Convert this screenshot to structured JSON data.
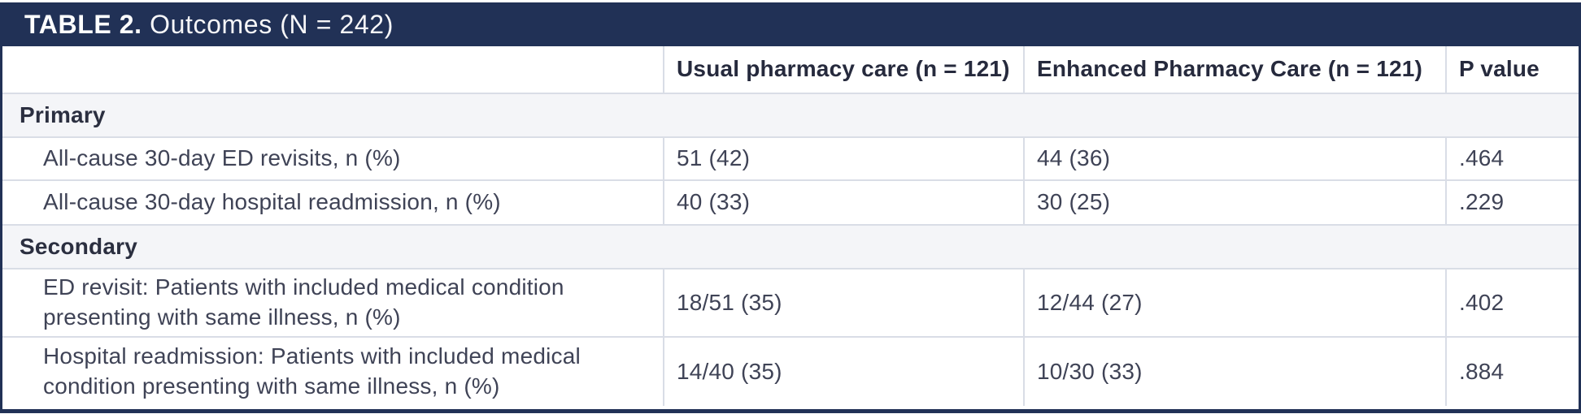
{
  "table": {
    "title_prefix": "TABLE 2.",
    "title_rest": " Outcomes (N = 242)",
    "columns": {
      "label": "",
      "usual": "Usual pharmacy care (n = 121)",
      "enhanced": "Enhanced Pharmacy Care (n = 121)",
      "p": "P value"
    },
    "sections": [
      {
        "label": "Primary",
        "rows": [
          {
            "label": "All-cause 30-day ED revisits, n (%)",
            "usual": "51 (42)",
            "enhanced": "44 (36)",
            "p": ".464"
          },
          {
            "label": "All-cause 30-day hospital readmission, n (%)",
            "usual": "40 (33)",
            "enhanced": "30 (25)",
            "p": ".229"
          }
        ]
      },
      {
        "label": "Secondary",
        "rows": [
          {
            "label": "ED revisit: Patients with included medical condition presenting with same illness, n (%)",
            "usual": "18/51 (35)",
            "enhanced": "12/44 (27)",
            "p": ".402"
          },
          {
            "label": "Hospital readmission: Patients with included medical condition presenting with same illness, n (%)",
            "usual": "14/40 (35)",
            "enhanced": "10/30 (33)",
            "p": ".884"
          }
        ]
      }
    ],
    "colors": {
      "navy": "#213156",
      "section_bg": "#f4f5f8",
      "grid_line": "#d9dde6",
      "body_text": "#3f4356"
    }
  }
}
